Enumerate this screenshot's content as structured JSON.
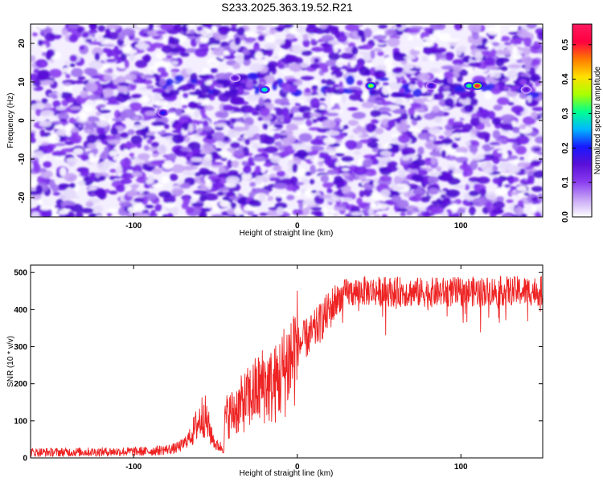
{
  "title": "S233.2025.363.19.52.R21",
  "colors": {
    "snr_line": "#ee2222",
    "colormap": [
      "#ffffff",
      "#c6a5f5",
      "#8a3cf0",
      "#5a10d8",
      "#1818ff",
      "#00b8ff",
      "#00ff90",
      "#aaff00",
      "#ffe000",
      "#ff7a00",
      "#ff0040",
      "#ff1a60"
    ]
  },
  "chart_data": [
    {
      "type": "heatmap",
      "xlabel": "Height of straight line (km)",
      "ylabel": "Frequency (Hz)",
      "xlim": [
        -163,
        150
      ],
      "ylim": [
        -25,
        25
      ],
      "x_ticks": [
        -100,
        0,
        100
      ],
      "x_tick_labels": [
        "-100",
        "0",
        "100"
      ],
      "y_ticks": [
        -20,
        -10,
        0,
        10,
        20
      ],
      "y_tick_labels": [
        "-20",
        "-10",
        "0",
        "10",
        "20"
      ],
      "colorbar": {
        "label": "Normalized spectral amplitude",
        "range": [
          0,
          0.56
        ],
        "ticks": [
          0,
          0.1,
          0.2,
          0.3,
          0.4,
          0.5
        ],
        "tick_labels": [
          "0.0",
          "0.1",
          "0.2",
          "0.3",
          "0.4",
          "0.5"
        ]
      },
      "signal_band": {
        "frequency_hz": 9,
        "x_start_km": -80,
        "x_end_km": 150
      },
      "hotspots": [
        {
          "x": -82,
          "y": 2,
          "v": 0.2
        },
        {
          "x": -38,
          "y": 11,
          "v": 0.15
        },
        {
          "x": -20,
          "y": 8,
          "v": 0.3
        },
        {
          "x": 45,
          "y": 9,
          "v": 0.35
        },
        {
          "x": 82,
          "y": 9,
          "v": 0.18
        },
        {
          "x": 105,
          "y": 9,
          "v": 0.32
        },
        {
          "x": 110,
          "y": 9,
          "v": 0.55
        },
        {
          "x": 140,
          "y": 8,
          "v": 0.15
        }
      ]
    },
    {
      "type": "line",
      "xlabel": "Height of straight line (km)",
      "ylabel": "SNR (10 * v/v)",
      "xlim": [
        -163,
        150
      ],
      "ylim": [
        0,
        520
      ],
      "x_ticks": [
        -100,
        0,
        100
      ],
      "x_tick_labels": [
        "-100",
        "0",
        "100"
      ],
      "y_ticks": [
        0,
        100,
        200,
        300,
        400,
        500
      ],
      "y_tick_labels": [
        "0",
        "100",
        "200",
        "300",
        "400",
        "500"
      ],
      "series": [
        {
          "envelope_x": [
            -163,
            -120,
            -90,
            -75,
            -70,
            -65,
            -60,
            -57,
            -54,
            -50,
            -47,
            -45,
            -44,
            -40,
            -35,
            -30,
            -25,
            -20,
            -15,
            -10,
            -5,
            0,
            5,
            10,
            15,
            20,
            25,
            30,
            40,
            60,
            80,
            100,
            120,
            150
          ],
          "envelope_y": [
            15,
            16,
            18,
            25,
            35,
            60,
            100,
            120,
            80,
            35,
            30,
            25,
            110,
            120,
            140,
            160,
            180,
            200,
            190,
            220,
            260,
            300,
            320,
            340,
            370,
            400,
            430,
            445,
            450,
            448,
            446,
            448,
            450,
            450
          ]
        }
      ]
    }
  ]
}
